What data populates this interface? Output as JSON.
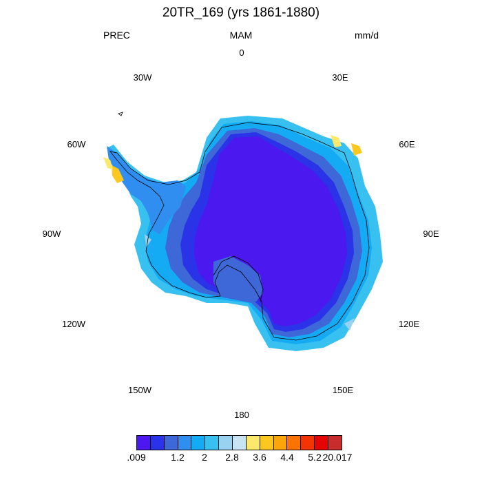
{
  "header": {
    "title": "20TR_169 (yrs 1861-1880)",
    "variable": "PREC",
    "season": "MAM",
    "units": "mm/d"
  },
  "longitude_labels": [
    "0",
    "30E",
    "60E",
    "90E",
    "120E",
    "150E",
    "180",
    "150W",
    "120W",
    "90W",
    "60W",
    "30W"
  ],
  "colorbar": {
    "colors": [
      "#4b18f0",
      "#2a33e8",
      "#3e68d8",
      "#2f8ef0",
      "#14aaf4",
      "#38c0f0",
      "#98d2f0",
      "#c8e4f4",
      "#fce86a",
      "#fcc820",
      "#fca40c",
      "#fc7400",
      "#f43400",
      "#e40404",
      "#c82c2c"
    ],
    "labels": [
      ".009",
      "1.2",
      "2",
      "2.8",
      "3.6",
      "4.4",
      "5.2",
      "20.017"
    ]
  },
  "map": {
    "projection": "south-polar-stereographic",
    "region": "Antarctica",
    "dominant_color": "#4b18f0"
  }
}
